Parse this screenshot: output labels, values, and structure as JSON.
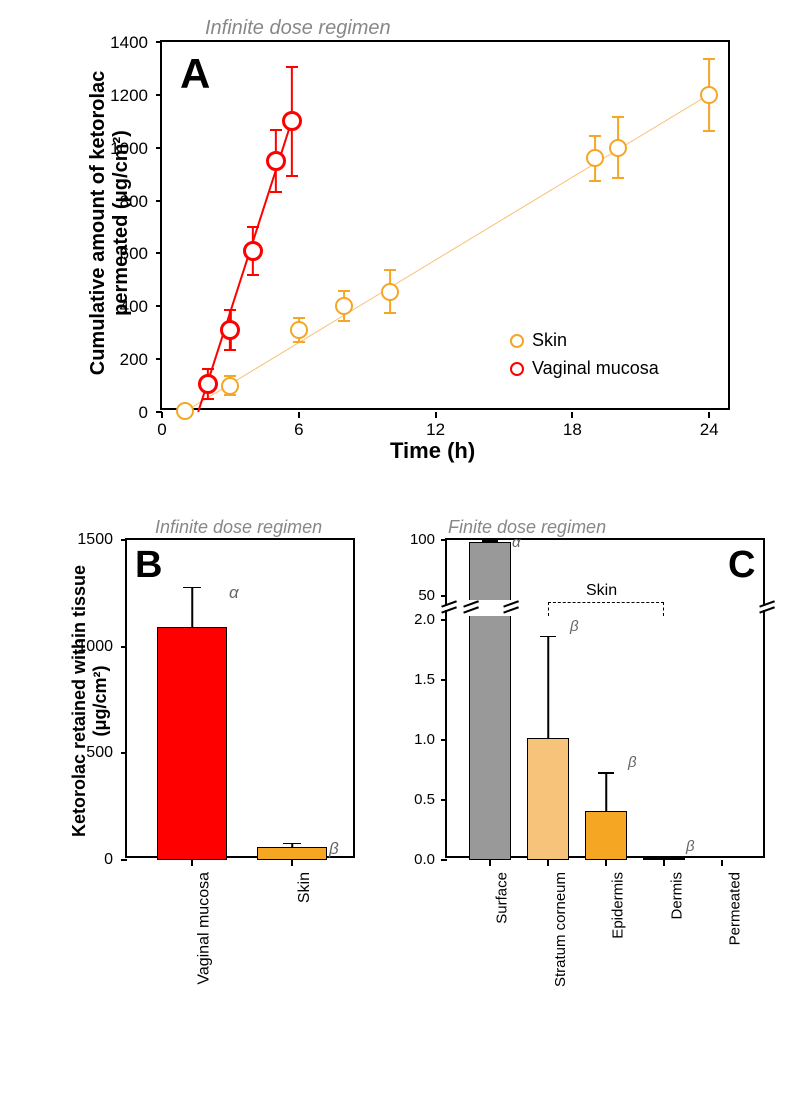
{
  "colors": {
    "skin": "#f5a623",
    "mucosa": "#ff0000",
    "gray_bar": "#999999",
    "light_orange": "#f7c27a",
    "orange": "#f5a623",
    "subtitle": "#888888"
  },
  "panelA": {
    "subtitle": "Infinite dose regimen",
    "letter": "A",
    "xlabel": "Time (h)",
    "ylabel": "Cumulative amount of ketorolac permeated (μg/cm²)",
    "xlim": [
      0,
      25
    ],
    "ylim": [
      0,
      1400
    ],
    "xticks": [
      0,
      6,
      12,
      18,
      24
    ],
    "yticks": [
      0,
      200,
      400,
      600,
      800,
      1000,
      1200,
      1400
    ],
    "legend": {
      "skin": "Skin",
      "mucosa": "Vaginal mucosa"
    },
    "skin_data": [
      {
        "x": 1,
        "y": 5,
        "err": 10
      },
      {
        "x": 3,
        "y": 100,
        "err": 40
      },
      {
        "x": 6,
        "y": 310,
        "err": 50
      },
      {
        "x": 8,
        "y": 400,
        "err": 60
      },
      {
        "x": 10,
        "y": 455,
        "err": 85
      },
      {
        "x": 19,
        "y": 960,
        "err": 90
      },
      {
        "x": 20,
        "y": 1000,
        "err": 120
      },
      {
        "x": 24,
        "y": 1200,
        "err": 140
      }
    ],
    "mucosa_data": [
      {
        "x": 2,
        "y": 105,
        "err": 60
      },
      {
        "x": 3,
        "y": 310,
        "err": 80
      },
      {
        "x": 4,
        "y": 610,
        "err": 95
      },
      {
        "x": 5,
        "y": 950,
        "err": 120
      },
      {
        "x": 5.7,
        "y": 1100,
        "err": 210
      }
    ]
  },
  "panelB": {
    "subtitle": "Infinite dose regimen",
    "letter": "B",
    "ylabel": "Ketorolac retained within tissue (μg/cm²)",
    "ylim": [
      0,
      1500
    ],
    "yticks": [
      0,
      500,
      1000,
      1500
    ],
    "categories": [
      "Vaginal mucosa",
      "Skin"
    ],
    "bars": [
      {
        "label": "Vaginal mucosa",
        "value": 1090,
        "err": 190,
        "color": "#ff0000",
        "greek": "α"
      },
      {
        "label": "Skin",
        "value": 60,
        "err": 20,
        "color": "#f5a623",
        "greek": "β"
      }
    ]
  },
  "panelC": {
    "subtitle": "Finite dose regimen",
    "letter": "C",
    "ylim_lower": [
      0,
      2.0
    ],
    "ylim_upper": [
      50,
      100
    ],
    "yticks_lower": [
      0.0,
      0.5,
      1.0,
      1.5,
      2.0
    ],
    "yticks_upper": [
      50,
      100
    ],
    "categories": [
      "Surface",
      "Stratum corneum",
      "Epidermis",
      "Dermis",
      "Permeated"
    ],
    "bracket_label": "Skin",
    "bars": [
      {
        "label": "Surface",
        "value": 98,
        "err": 2,
        "color": "#999999",
        "greek": "α",
        "upper": true
      },
      {
        "label": "Stratum corneum",
        "value": 1.02,
        "err": 0.85,
        "color": "#f7c27a",
        "greek": "β",
        "upper": false
      },
      {
        "label": "Epidermis",
        "value": 0.41,
        "err": 0.32,
        "color": "#f5a623",
        "greek": "β",
        "upper": false
      },
      {
        "label": "Dermis",
        "value": 0.02,
        "err": 0.01,
        "color": "#f5a623",
        "greek": "β",
        "upper": false
      },
      {
        "label": "Permeated",
        "value": 0,
        "err": 0,
        "color": "#f5a623",
        "greek": "",
        "upper": false
      }
    ]
  }
}
